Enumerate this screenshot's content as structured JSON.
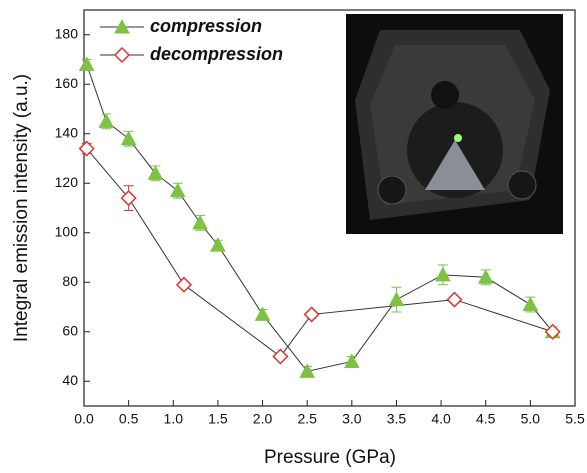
{
  "chart_data": {
    "type": "scatter",
    "x_label": "Pressure (GPa)",
    "y_label": "Integral emission intensity (a.u.)",
    "xlim": [
      0,
      5.5
    ],
    "ylim": [
      30,
      190
    ],
    "xticks": [
      {
        "value": 0,
        "label": "0.0"
      },
      0.5,
      {
        "value": 1,
        "label": "1.0"
      },
      1.5,
      {
        "value": 2,
        "label": "2.0"
      },
      2.5,
      {
        "value": 3,
        "label": "3.0"
      },
      3.5,
      {
        "value": 4,
        "label": "4.0"
      },
      4.5,
      {
        "value": 5,
        "label": "5.0"
      },
      5.5
    ],
    "yticks": [
      40,
      60,
      80,
      100,
      120,
      140,
      160,
      180
    ],
    "line_color": "#333333",
    "series": [
      {
        "name": "compression",
        "color": "#7dc242",
        "marker": "triangle",
        "x": [
          0.03,
          0.25,
          0.5,
          0.8,
          1.05,
          1.3,
          1.5,
          2.0,
          2.5,
          3.0,
          3.5,
          4.02,
          4.5,
          5.0,
          5.25
        ],
        "values": [
          168,
          145,
          138,
          124,
          117,
          104,
          95,
          67,
          44,
          48,
          73,
          83,
          82,
          71,
          60
        ],
        "errors": [
          2,
          3,
          3,
          3,
          3,
          3,
          2,
          2,
          2,
          2,
          5,
          4,
          3,
          3,
          2
        ]
      },
      {
        "name": "decompression",
        "color": "#e0322a",
        "marker": "diamond",
        "x": [
          0.03,
          0.5,
          1.12,
          2.2,
          2.55,
          4.15,
          5.25
        ],
        "values": [
          134,
          114,
          79,
          50,
          67,
          73,
          60
        ],
        "errors": [
          2,
          5,
          1,
          1,
          1,
          1,
          1
        ]
      }
    ]
  }
}
